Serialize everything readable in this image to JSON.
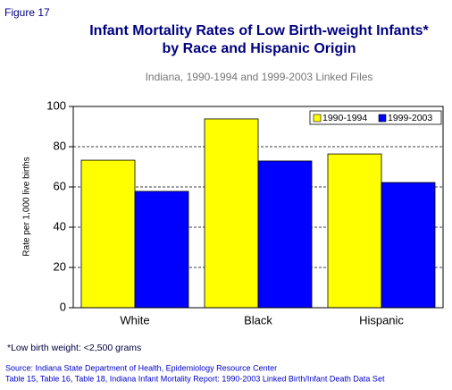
{
  "chart_data": {
    "type": "bar",
    "figure_label": "Figure 17",
    "title": [
      "Infant Mortality Rates of Low Birth-weight Infants*",
      "by Race and Hispanic Origin"
    ],
    "subtitle": "Indiana, 1990-1994 and 1999-2003 Linked Files",
    "y_label": "Rate per 1,000 live births",
    "categories": [
      "White",
      "Black",
      "Hispanic"
    ],
    "series": [
      {
        "name": "1990-1994",
        "color": "#ffff00",
        "values": [
          73.3,
          93.8,
          76.4
        ]
      },
      {
        "name": "1999-2003",
        "color": "#0000ff",
        "values": [
          57.8,
          72.9,
          62.2
        ]
      }
    ],
    "ylim": [
      0,
      100
    ],
    "yticks": [
      0,
      20,
      40,
      60,
      80,
      100
    ],
    "grid": true,
    "legend": "top-right",
    "footnote": "*Low birth weight: <2,500 grams",
    "source": [
      "Source: Indiana State Department of Health, Epidemiology Resource Center",
      "Table 15, Table 16, Table 18, Indiana Infant Mortality Report: 1990-2003 Linked Birth/Infant Death Data Set"
    ]
  }
}
